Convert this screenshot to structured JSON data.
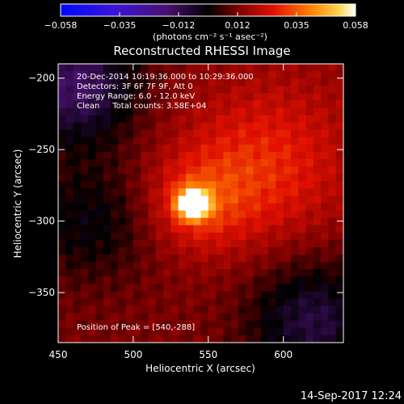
{
  "chart_data": {
    "type": "heatmap",
    "title": "Reconstructed RHESSI Image",
    "xlabel": "Heliocentric X (arcsec)",
    "ylabel": "Heliocentric Y (arcsec)",
    "xlim": [
      450,
      640
    ],
    "ylim": [
      -385,
      -190
    ],
    "x_ticks": [
      450,
      500,
      550,
      600
    ],
    "y_ticks": [
      -200,
      -250,
      -300,
      -350
    ],
    "colorbar": {
      "min": -0.058,
      "max": 0.058,
      "ticks": [
        "-0.058",
        "-0.035",
        "-0.012",
        "0.012",
        "0.035",
        "0.058"
      ],
      "unit_label": "(photons cm⁻² s⁻¹ asec⁻²)"
    },
    "annotations": [
      "20-Dec-2014 10:19:36.000 to 10:29:36.000",
      "Detectors: 3F 6F 7F 9F, Att 0",
      "Energy Range: 6.0 - 12.0 keV",
      "Clean     Total counts: 3.58E+04"
    ],
    "peak_text": "Position of Peak = [540,-288]",
    "peak": {
      "x": 540,
      "y": -288,
      "value": 0.058
    },
    "timestamp": "14-Sep-2017 12:24"
  }
}
